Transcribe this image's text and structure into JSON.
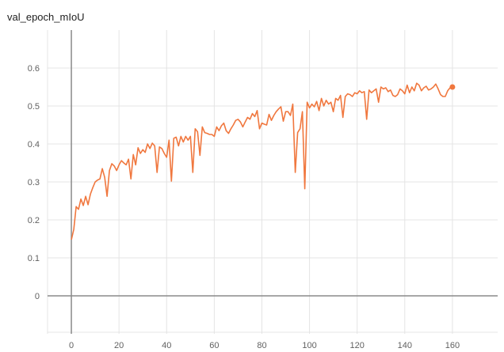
{
  "chart_data": {
    "type": "line",
    "title": "val_epoch_mIoU",
    "xlabel": "",
    "ylabel": "",
    "xlim": [
      -10,
      179
    ],
    "ylim": [
      -0.1,
      0.7
    ],
    "xticks": [
      0,
      20,
      40,
      60,
      80,
      100,
      120,
      140,
      160
    ],
    "yticks": [
      0,
      0.1,
      0.2,
      0.3,
      0.4,
      0.5,
      0.6
    ],
    "grid": true,
    "legend": "none",
    "colors": {
      "series": "#f0773e",
      "grid": "#e4e4e4",
      "zero_axis": "#8a8a8a"
    },
    "series": [
      {
        "x": [
          0,
          1,
          2,
          3,
          4,
          5,
          6,
          7,
          8,
          9,
          10,
          11,
          12,
          13,
          14,
          15,
          16,
          17,
          18,
          19,
          20,
          21,
          22,
          23,
          24,
          25,
          26,
          27,
          28,
          29,
          30,
          31,
          32,
          33,
          34,
          35,
          36,
          37,
          38,
          39,
          40,
          41,
          42,
          43,
          44,
          45,
          46,
          47,
          48,
          49,
          50,
          51,
          52,
          53,
          54,
          55,
          56,
          57,
          58,
          59,
          60,
          61,
          62,
          63,
          64,
          65,
          66,
          67,
          68,
          69,
          70,
          71,
          72,
          73,
          74,
          75,
          76,
          77,
          78,
          79,
          80,
          81,
          82,
          83,
          84,
          85,
          86,
          87,
          88,
          89,
          90,
          91,
          92,
          93,
          94,
          95,
          96,
          97,
          98,
          99,
          100,
          101,
          102,
          103,
          104,
          105,
          106,
          107,
          108,
          109,
          110,
          111,
          112,
          113,
          114,
          115,
          116,
          117,
          118,
          119,
          120,
          121,
          122,
          123,
          124,
          125,
          126,
          127,
          128,
          129,
          130,
          131,
          132,
          133,
          134,
          135,
          136,
          137,
          138,
          139,
          140,
          141,
          142,
          143,
          144,
          145,
          146,
          147,
          148,
          149,
          150,
          151,
          152,
          153,
          154,
          155,
          156,
          157,
          158,
          159,
          160
        ],
        "y": [
          0.148,
          0.175,
          0.235,
          0.228,
          0.255,
          0.238,
          0.262,
          0.24,
          0.268,
          0.285,
          0.3,
          0.305,
          0.308,
          0.335,
          0.312,
          0.262,
          0.33,
          0.348,
          0.342,
          0.33,
          0.345,
          0.356,
          0.35,
          0.345,
          0.36,
          0.308,
          0.372,
          0.345,
          0.39,
          0.375,
          0.385,
          0.378,
          0.4,
          0.388,
          0.402,
          0.395,
          0.325,
          0.392,
          0.388,
          0.375,
          0.365,
          0.41,
          0.302,
          0.415,
          0.418,
          0.395,
          0.42,
          0.405,
          0.42,
          0.41,
          0.42,
          0.325,
          0.44,
          0.432,
          0.37,
          0.445,
          0.43,
          0.428,
          0.425,
          0.425,
          0.42,
          0.445,
          0.435,
          0.448,
          0.455,
          0.435,
          0.428,
          0.44,
          0.45,
          0.462,
          0.465,
          0.458,
          0.445,
          0.458,
          0.47,
          0.465,
          0.48,
          0.472,
          0.488,
          0.44,
          0.455,
          0.452,
          0.45,
          0.478,
          0.462,
          0.475,
          0.485,
          0.492,
          0.498,
          0.46,
          0.485,
          0.485,
          0.475,
          0.505,
          0.325,
          0.43,
          0.44,
          0.485,
          0.282,
          0.51,
          0.495,
          0.505,
          0.498,
          0.512,
          0.488,
          0.52,
          0.5,
          0.515,
          0.505,
          0.51,
          0.485,
          0.52,
          0.515,
          0.528,
          0.47,
          0.525,
          0.532,
          0.53,
          0.525,
          0.535,
          0.532,
          0.54,
          0.535,
          0.538,
          0.465,
          0.542,
          0.535,
          0.54,
          0.545,
          0.51,
          0.55,
          0.545,
          0.548,
          0.538,
          0.542,
          0.528,
          0.525,
          0.53,
          0.545,
          0.54,
          0.532,
          0.555,
          0.535,
          0.55,
          0.54,
          0.56,
          0.555,
          0.54,
          0.548,
          0.552,
          0.542,
          0.545,
          0.55,
          0.558,
          0.545,
          0.53,
          0.525,
          0.525,
          0.54,
          0.548,
          0.55
        ]
      }
    ]
  }
}
